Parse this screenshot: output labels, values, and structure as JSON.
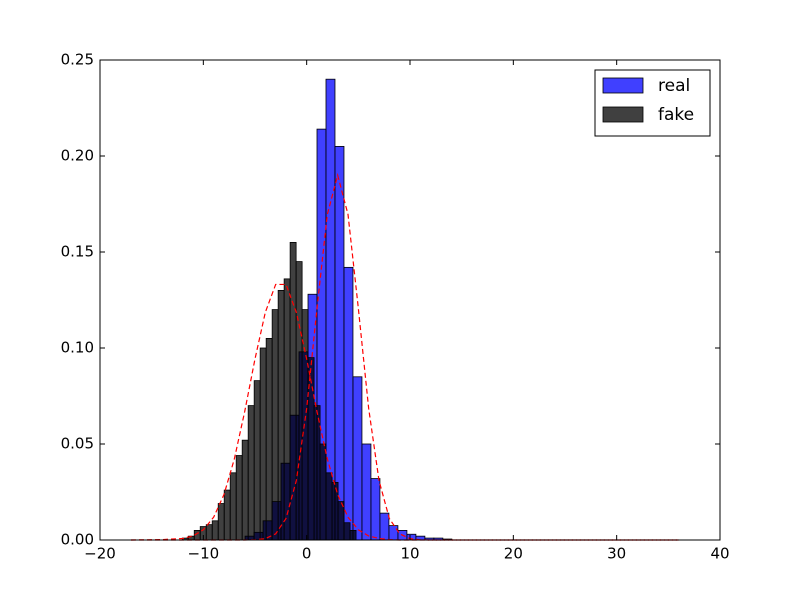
{
  "chart_data": {
    "type": "histogram",
    "xlim": [
      -20,
      40
    ],
    "ylim": [
      0,
      0.25
    ],
    "xticks": [
      {
        "value": -20,
        "label": "−20"
      },
      {
        "value": -10,
        "label": "−10"
      },
      0,
      10,
      20,
      30,
      40
    ],
    "yticks": [
      {
        "value": 0,
        "label": "0.00"
      },
      {
        "value": 0.05,
        "label": "0.05"
      },
      {
        "value": 0.1,
        "label": "0.10"
      },
      {
        "value": 0.15,
        "label": "0.15"
      },
      {
        "value": 0.2,
        "label": "0.20"
      },
      {
        "value": 0.25,
        "label": "0.25"
      }
    ],
    "grid": false,
    "legend": "upper right",
    "series": [
      {
        "name": "real",
        "color": "#0000ff",
        "bins": [
          -5.96,
          -5.09,
          -4.22,
          -3.35,
          -2.48,
          -1.61,
          -0.74,
          0.13,
          1.0,
          1.87,
          2.74,
          3.61,
          4.48,
          5.35,
          6.22,
          7.09,
          7.96,
          8.83,
          9.7,
          10.57,
          11.44,
          12.31,
          13.18,
          14.05
        ],
        "values": [
          0.002,
          0.004,
          0.01,
          0.02,
          0.04,
          0.065,
          0.098,
          0.128,
          0.214,
          0.24,
          0.205,
          0.142,
          0.085,
          0.05,
          0.032,
          0.014,
          0.0075,
          0.005,
          0.003,
          0.002,
          0.001,
          0.001,
          0.0005
        ]
      },
      {
        "name": "fake",
        "color": "#000000",
        "bins": [
          -12.04,
          -11.46,
          -10.88,
          -10.3,
          -9.72,
          -9.14,
          -8.56,
          -7.98,
          -7.4,
          -6.82,
          -6.24,
          -5.66,
          -5.08,
          -4.5,
          -3.92,
          -3.34,
          -2.76,
          -2.18,
          -1.6,
          -1.02,
          -0.44,
          0.14,
          0.72,
          1.3,
          1.88,
          2.46,
          3.04,
          3.62,
          4.2,
          4.78
        ],
        "values": [
          0.001,
          0.002,
          0.005,
          0.007,
          0.008,
          0.01,
          0.019,
          0.026,
          0.035,
          0.044,
          0.052,
          0.07,
          0.083,
          0.1,
          0.105,
          0.12,
          0.13,
          0.136,
          0.155,
          0.145,
          0.12,
          0.095,
          0.07,
          0.05,
          0.035,
          0.03,
          0.02,
          0.009,
          0.005
        ]
      }
    ],
    "curves": {
      "color": "#ff0000",
      "dashed": true,
      "x": [
        -17,
        -14,
        -12,
        -11,
        -10,
        -9,
        -8,
        -7,
        -6,
        -5,
        -4,
        -3,
        -2,
        -1,
        0,
        1,
        2,
        3,
        4,
        5,
        6,
        7,
        8,
        9,
        10,
        11,
        12,
        16,
        20,
        25,
        30,
        36
      ],
      "series": [
        {
          "values": [
            0,
            0,
            0,
            0,
            0,
            0,
            0,
            0,
            0,
            0.0001,
            0.0007,
            0.0032,
            0.0112,
            0.031,
            0.0685,
            0.1207,
            0.1696,
            0.19,
            0.1696,
            0.1207,
            0.0685,
            0.031,
            0.0112,
            0.0032,
            0.0007,
            0.0001,
            0,
            0,
            0,
            0,
            0,
            0
          ]
        },
        {
          "values": [
            0,
            0.0002,
            0.0008,
            0.0021,
            0.0053,
            0.0119,
            0.0237,
            0.0422,
            0.0668,
            0.0943,
            0.1186,
            0.1331,
            0.1331,
            0.1186,
            0.0943,
            0.0668,
            0.0422,
            0.0237,
            0.0119,
            0.0053,
            0.0021,
            0.0008,
            0.0002,
            0,
            0,
            0,
            0,
            0,
            0,
            0,
            0,
            0
          ]
        }
      ]
    }
  }
}
